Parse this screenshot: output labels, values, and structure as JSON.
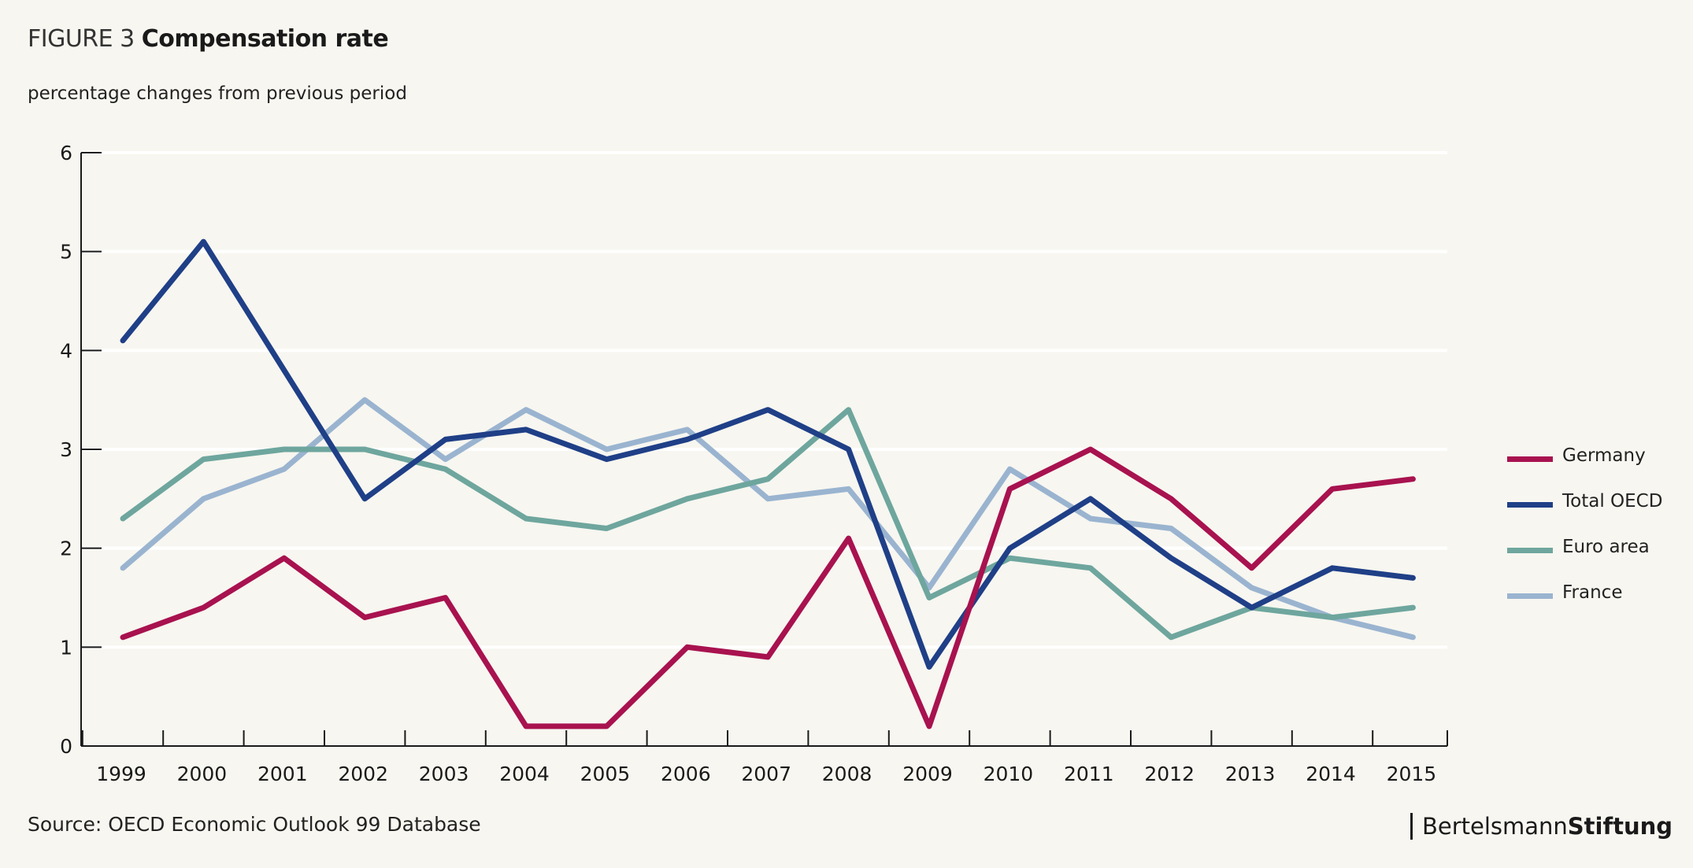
{
  "header": {
    "figure_label": "FIGURE 3",
    "title": "Compensation rate",
    "subtitle": "percentage changes from previous period"
  },
  "footer": {
    "source": "Source: OECD Economic Outlook 99 Database",
    "brand_part1": "Bertelsmann",
    "brand_part2": "Stiftung"
  },
  "colors": {
    "background": "#f7f6f0",
    "germany": "#a8124f",
    "total_oecd": "#1f3f87",
    "euro_area": "#6ea69e",
    "france": "#9ab4d0"
  },
  "chart_data": {
    "type": "line",
    "title": "Compensation rate",
    "subtitle": "percentage changes from previous period",
    "x": [
      "1999",
      "2000",
      "2001",
      "2002",
      "2003",
      "2004",
      "2005",
      "2006",
      "2007",
      "2008",
      "2009",
      "2010",
      "2011",
      "2012",
      "2013",
      "2014",
      "2015"
    ],
    "ylim": [
      0,
      6
    ],
    "yticks": [
      0,
      1,
      2,
      3,
      4,
      5,
      6
    ],
    "grid": true,
    "legend_position": "right",
    "series": [
      {
        "name": "Germany",
        "color": "#a8124f",
        "values": [
          1.1,
          1.4,
          1.9,
          1.3,
          1.5,
          0.2,
          0.2,
          1.0,
          0.9,
          2.1,
          0.2,
          2.6,
          3.0,
          2.5,
          1.8,
          2.6,
          2.7
        ]
      },
      {
        "name": "Total OECD",
        "color": "#1f3f87",
        "values": [
          4.1,
          5.1,
          3.8,
          2.5,
          3.1,
          3.2,
          2.9,
          3.1,
          3.4,
          3.0,
          0.8,
          2.0,
          2.5,
          1.9,
          1.4,
          1.8,
          1.7
        ]
      },
      {
        "name": "Euro area",
        "color": "#6ea69e",
        "values": [
          2.3,
          2.9,
          3.0,
          3.0,
          2.8,
          2.3,
          2.2,
          2.5,
          2.7,
          3.4,
          1.5,
          1.9,
          1.8,
          1.1,
          1.4,
          1.3,
          1.4
        ]
      },
      {
        "name": "France",
        "color": "#9ab4d0",
        "values": [
          1.8,
          2.5,
          2.8,
          3.5,
          2.9,
          3.4,
          3.0,
          3.2,
          2.5,
          2.6,
          1.6,
          2.8,
          2.3,
          2.2,
          1.6,
          1.3,
          1.1
        ]
      }
    ]
  }
}
